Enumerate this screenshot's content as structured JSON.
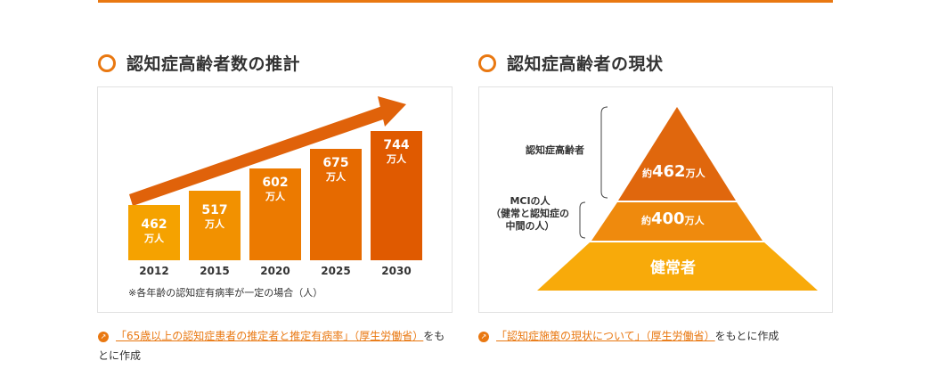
{
  "left": {
    "title": "認知症高齢者数の推計",
    "unit": "万人",
    "note": "※各年齢の認知症有病率が一定の場合（人）",
    "source_link": "「65歳以上の認知症患者の推定者と推定有病率」（厚生労働省）",
    "source_suffix": "をもとに作成",
    "colors": [
      "#f5a200",
      "#f29100",
      "#ec7a00",
      "#e66a00",
      "#e05a00"
    ],
    "arrow_color": "#e0620a"
  },
  "chart_data": {
    "type": "bar",
    "title": "認知症高齢者数の推計",
    "categories": [
      "2012",
      "2015",
      "2020",
      "2025",
      "2030"
    ],
    "values": [
      462,
      517,
      602,
      675,
      744
    ],
    "ylabel": "万人",
    "ylim": [
      0,
      800
    ]
  },
  "right": {
    "title": "認知症高齢者の現状",
    "label_dementia": "認知症高齢者",
    "label_mci_1": "MCIの人",
    "label_mci_2": "（健常と認知症の",
    "label_mci_3": "中間の人）",
    "top_prefix": "約",
    "top_value": "462",
    "top_unit": "万人",
    "mid_prefix": "約",
    "mid_value": "400",
    "mid_unit": "万人",
    "bottom_label": "健常者",
    "colors": {
      "top": "#e0670d",
      "mid": "#ef8a0d",
      "bottom": "#f8aa0a"
    },
    "source_link": "「認知症施策の現状について」（厚生労働省）",
    "source_suffix": "をもとに作成"
  }
}
